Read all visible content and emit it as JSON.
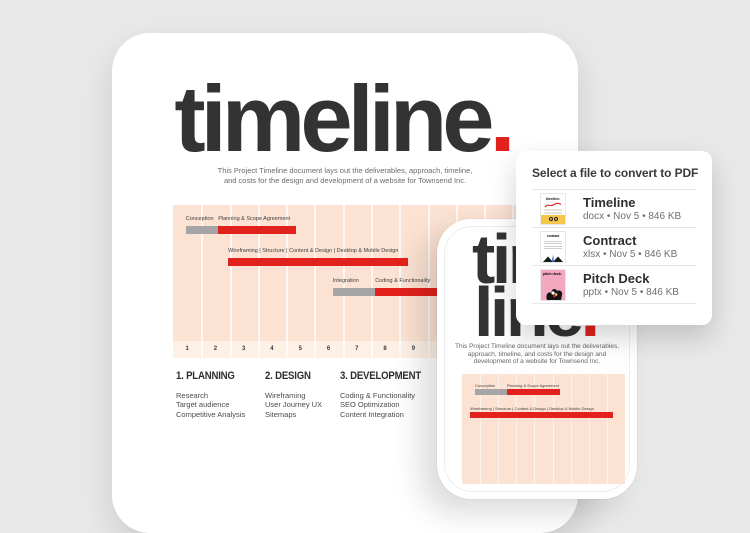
{
  "colors": {
    "accent_red": "#e2211c",
    "bar_gray": "#a5a5a5",
    "chart_background": "#fbe2d2",
    "chart_axis_background": "#fdf0e4",
    "page_background": "#e9e9e9"
  },
  "document": {
    "title_word": "timeline",
    "title_period": ".",
    "description_lines": [
      "This Project Timeline document lays out the deliverables, approach, timeline,",
      "and costs for the design and development of a website for Townsend Inc."
    ],
    "sections": [
      {
        "title": "1. PLANNING",
        "items": [
          "Research",
          "Target audience",
          "Competitive Analysis"
        ]
      },
      {
        "title": "2. DESIGN",
        "items": [
          "Wireframing",
          "User Journey UX",
          "Sitemaps"
        ]
      },
      {
        "title": "3. DEVELOPMENT",
        "items": [
          "Coding & Functionality",
          "SEO Optimization",
          "Content Integration"
        ]
      }
    ]
  },
  "chart_data": {
    "type": "gantt",
    "unit": "weeks",
    "x_ticks": [
      "1",
      "2",
      "3",
      "4",
      "5",
      "6",
      "7",
      "8",
      "9"
    ],
    "total_span": 12.2,
    "grid": true,
    "rows": [
      {
        "segments": [
          {
            "label": "Conception",
            "color": "#a5a5a5",
            "start": 0.45,
            "end": 1.6
          },
          {
            "label": "Planning & Scope Agreement",
            "color": "#e2211c",
            "start": 1.6,
            "end": 4.35
          }
        ]
      },
      {
        "segments": [
          {
            "label": "Wireframing | Structure | Content & Design | Desktop & Mobile Design",
            "color": "#e2211c",
            "start": 1.95,
            "end": 8.3
          }
        ]
      },
      {
        "segments": [
          {
            "label": "Integration",
            "color": "#a5a5a5",
            "start": 5.65,
            "end": 7.15
          },
          {
            "label": "Coding & Functionality",
            "color": "#e2211c",
            "start": 7.15,
            "end": 10.2
          }
        ]
      }
    ]
  },
  "popup": {
    "title": "Select a file to convert to PDF",
    "files": [
      {
        "name": "Timeline",
        "meta": "docx • Nov 5 • 846 KB",
        "thumb_text": "timeline."
      },
      {
        "name": "Contract",
        "meta": "xlsx • Nov 5 • 846 KB",
        "thumb_text": "contract"
      },
      {
        "name": "Pitch Deck",
        "meta": "pptx • Nov 5 • 846 KB",
        "thumb_text": "pitch deck."
      }
    ]
  },
  "phone": {
    "title_line1": "time",
    "title_line2_word": "line",
    "title_period": ".",
    "description_lines": [
      "This Project Timeline document lays out the deliverables,",
      "approach, timeline, and costs for the design and",
      "development of a website for Townsend Inc."
    ],
    "chart": {
      "rows": [
        {
          "segments": [
            {
              "label": "Conception",
              "color": "#a5a5a5",
              "start_pct": 8,
              "end_pct": 27.5
            },
            {
              "label": "Planning & Scope Agreement",
              "color": "#e2211c",
              "start_pct": 27.5,
              "end_pct": 60
            }
          ]
        },
        {
          "segments": [
            {
              "label": "Wireframing | Structure | Content & Design | Desktop & Mobile Design",
              "color": "#e2211c",
              "start_pct": 5,
              "end_pct": 92.5
            }
          ]
        }
      ]
    }
  }
}
